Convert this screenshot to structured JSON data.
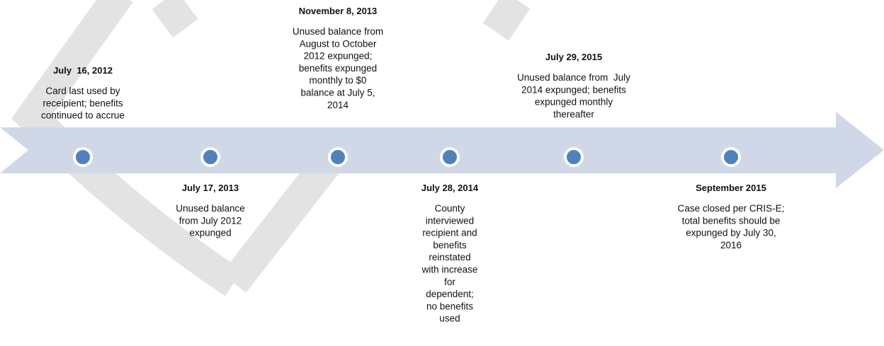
{
  "title": null,
  "events": [
    {
      "date": "July  16, 2012",
      "lines": [
        "Card last used by",
        "receipient; benefits",
        "continued to accrue"
      ]
    },
    {
      "date": "July 17, 2013",
      "lines": [
        "Unused balance",
        "from July 2012",
        "expunged"
      ]
    },
    {
      "date": "November 8, 2013",
      "lines": [
        "Unused balance from",
        "August to October",
        "2012 expunged;",
        "benefits expunged",
        "monthly to $0",
        "balance at July 5,",
        "2014"
      ]
    },
    {
      "date": "July 28, 2014",
      "lines": [
        "County",
        "interviewed",
        "recipient and",
        "benefits",
        "reinstated",
        "with increase",
        "for",
        "dependent;",
        "no benefits",
        "used"
      ]
    },
    {
      "date": "July 29, 2015",
      "lines": [
        "Unused balance from  July",
        "2014 expunged; benefits",
        "expunged monthly",
        "thereafter"
      ]
    },
    {
      "date": "September 2015",
      "lines": [
        "Case closed per CRIS-E;",
        "total benefits should be",
        "expunged by July 30,",
        "2016"
      ]
    }
  ]
}
